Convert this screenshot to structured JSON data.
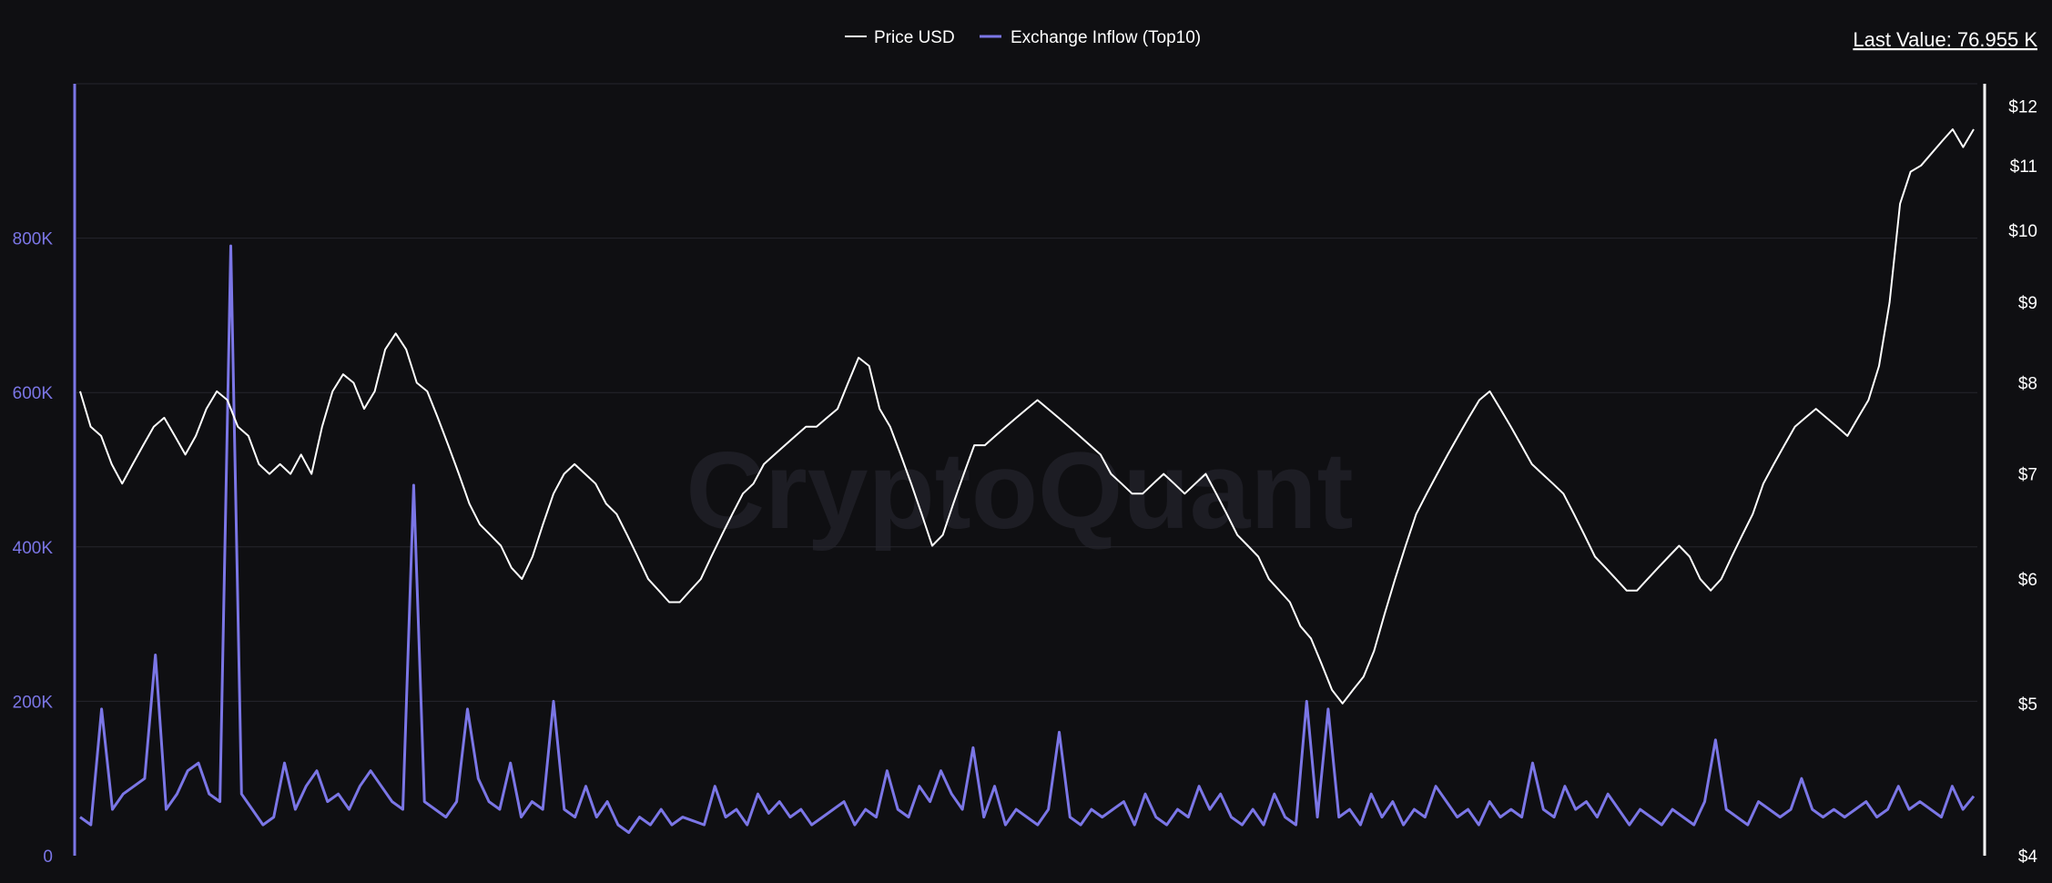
{
  "legend": {
    "price_label": "Price USD",
    "inflow_label": "Exchange Inflow (Top10)"
  },
  "last_value": "Last Value: 76.955 K",
  "watermark": "CryptoQuant",
  "colors": {
    "background": "#0f0f12",
    "price": "#ffffff",
    "inflow": "#7b76e6",
    "grid": "#26262d"
  },
  "chart_data": {
    "type": "line",
    "left_axis": {
      "ticks": [
        "0",
        "200K",
        "400K",
        "600K",
        "800K"
      ],
      "tick_values": [
        0,
        200000,
        400000,
        600000,
        800000
      ],
      "range": [
        0,
        1000000
      ]
    },
    "right_axis": {
      "scale": "log",
      "ticks": [
        "$4",
        "$5",
        "$6",
        "$7",
        "$8",
        "$9",
        "$10",
        "$11",
        "$12"
      ],
      "tick_values": [
        4,
        5,
        6,
        7,
        8,
        9,
        10,
        11,
        12
      ],
      "range": [
        4,
        12.4
      ]
    },
    "series": [
      {
        "name": "Price USD",
        "axis": "right",
        "values": [
          7.9,
          7.5,
          7.4,
          7.1,
          6.9,
          7.1,
          7.3,
          7.5,
          7.6,
          7.4,
          7.2,
          7.4,
          7.7,
          7.9,
          7.8,
          7.5,
          7.4,
          7.1,
          7.0,
          7.1,
          7.0,
          7.2,
          7.0,
          7.5,
          7.9,
          8.1,
          8.0,
          7.7,
          7.9,
          8.4,
          8.6,
          8.4,
          8.0,
          7.9,
          7.6,
          7.3,
          7.0,
          6.7,
          6.5,
          6.4,
          6.3,
          6.1,
          6.0,
          6.2,
          6.5,
          6.8,
          7.0,
          7.1,
          7.0,
          6.9,
          6.7,
          6.6,
          6.4,
          6.2,
          6.0,
          5.9,
          5.8,
          5.8,
          5.9,
          6.0,
          6.2,
          6.4,
          6.6,
          6.8,
          6.9,
          7.1,
          7.2,
          7.3,
          7.4,
          7.5,
          7.5,
          7.6,
          7.7,
          8.0,
          8.3,
          8.2,
          7.7,
          7.5,
          7.2,
          6.9,
          6.6,
          6.3,
          6.4,
          6.7,
          7.0,
          7.3,
          7.3,
          7.4,
          7.5,
          7.6,
          7.7,
          7.8,
          7.7,
          7.6,
          7.5,
          7.4,
          7.3,
          7.2,
          7.0,
          6.9,
          6.8,
          6.8,
          6.9,
          7.0,
          6.9,
          6.8,
          6.9,
          7.0,
          6.8,
          6.6,
          6.4,
          6.3,
          6.2,
          6.0,
          5.9,
          5.8,
          5.6,
          5.5,
          5.3,
          5.1,
          5.0,
          5.1,
          5.2,
          5.4,
          5.7,
          6.0,
          6.3,
          6.6,
          6.8,
          7.0,
          7.2,
          7.4,
          7.6,
          7.8,
          7.9,
          7.7,
          7.5,
          7.3,
          7.1,
          7.0,
          6.9,
          6.8,
          6.6,
          6.4,
          6.2,
          6.1,
          6.0,
          5.9,
          5.9,
          6.0,
          6.1,
          6.2,
          6.3,
          6.2,
          6.0,
          5.9,
          6.0,
          6.2,
          6.4,
          6.6,
          6.9,
          7.1,
          7.3,
          7.5,
          7.6,
          7.7,
          7.6,
          7.5,
          7.4,
          7.6,
          7.8,
          8.2,
          9.0,
          10.4,
          10.9,
          11.0,
          11.2,
          11.4,
          11.6,
          11.3,
          11.6
        ]
      },
      {
        "name": "Exchange Inflow (Top10)",
        "axis": "left",
        "values": [
          50000,
          40000,
          190000,
          60000,
          80000,
          90000,
          100000,
          260000,
          60000,
          80000,
          110000,
          120000,
          80000,
          70000,
          790000,
          80000,
          60000,
          40000,
          50000,
          120000,
          60000,
          90000,
          110000,
          70000,
          80000,
          60000,
          90000,
          110000,
          90000,
          70000,
          60000,
          480000,
          70000,
          60000,
          50000,
          70000,
          190000,
          100000,
          70000,
          60000,
          120000,
          50000,
          70000,
          60000,
          200000,
          60000,
          50000,
          90000,
          50000,
          70000,
          40000,
          30000,
          50000,
          40000,
          60000,
          40000,
          50000,
          45000,
          40000,
          90000,
          50000,
          60000,
          40000,
          80000,
          55000,
          70000,
          50000,
          60000,
          40000,
          50000,
          60000,
          70000,
          40000,
          60000,
          50000,
          110000,
          60000,
          50000,
          90000,
          70000,
          110000,
          80000,
          60000,
          140000,
          50000,
          90000,
          40000,
          60000,
          50000,
          40000,
          60000,
          160000,
          50000,
          40000,
          60000,
          50000,
          60000,
          70000,
          40000,
          80000,
          50000,
          40000,
          60000,
          50000,
          90000,
          60000,
          80000,
          50000,
          40000,
          60000,
          40000,
          80000,
          50000,
          40000,
          200000,
          50000,
          190000,
          50000,
          60000,
          40000,
          80000,
          50000,
          70000,
          40000,
          60000,
          50000,
          90000,
          70000,
          50000,
          60000,
          40000,
          70000,
          50000,
          60000,
          50000,
          120000,
          60000,
          50000,
          90000,
          60000,
          70000,
          50000,
          80000,
          60000,
          40000,
          60000,
          50000,
          40000,
          60000,
          50000,
          40000,
          70000,
          150000,
          60000,
          50000,
          40000,
          70000,
          60000,
          50000,
          60000,
          100000,
          60000,
          50000,
          60000,
          50000,
          60000,
          70000,
          50000,
          60000,
          90000,
          60000,
          70000,
          60000,
          50000,
          90000,
          60000,
          77000
        ]
      }
    ]
  }
}
